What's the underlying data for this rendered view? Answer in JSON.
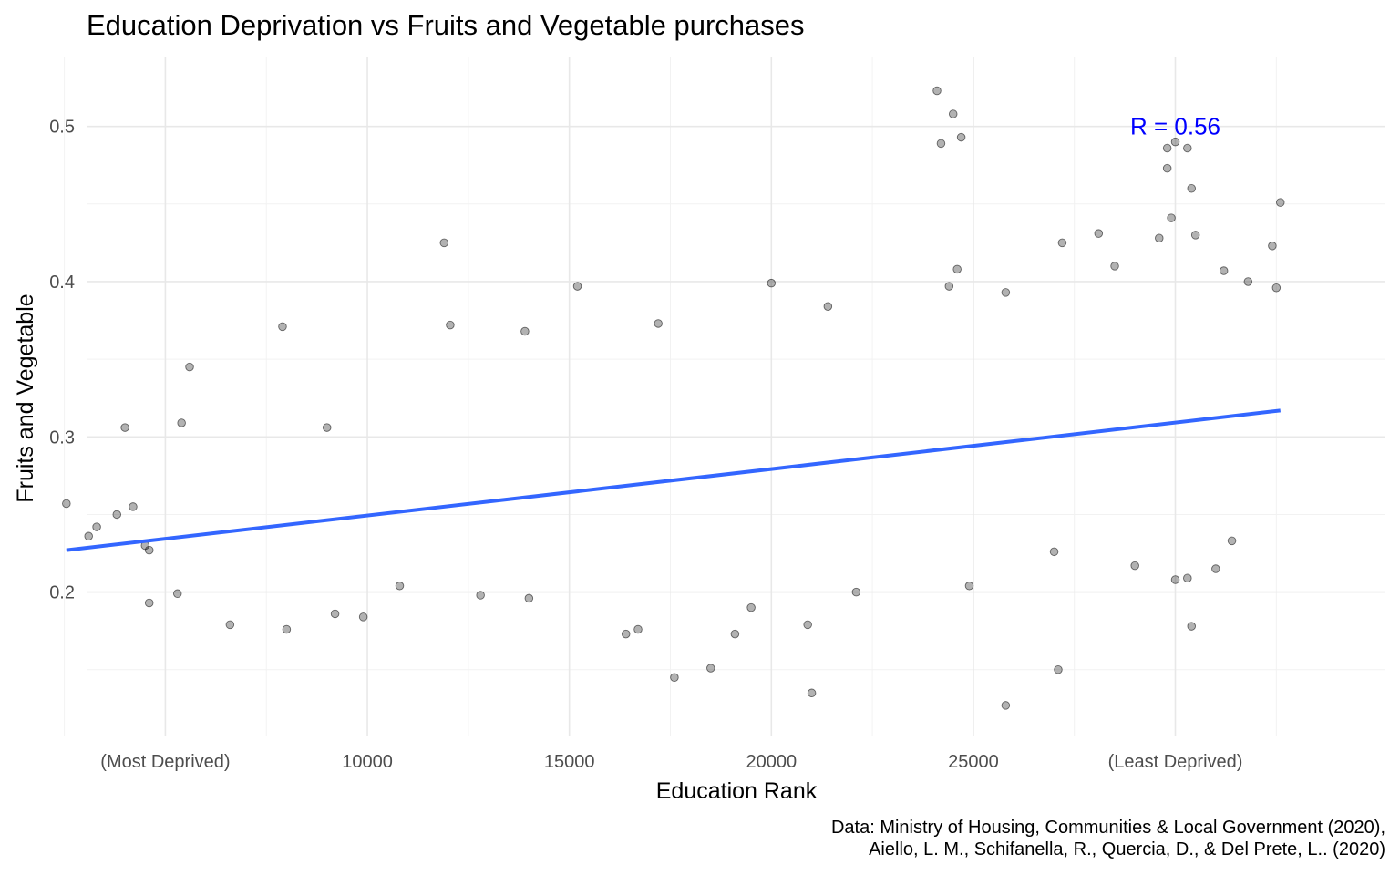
{
  "chart_data": {
    "type": "scatter",
    "title": "Education Deprivation vs Fruits and Vegetable purchases",
    "xlabel": "Education Rank",
    "ylabel": "Fruits and Vegetable",
    "xlim": [
      3050,
      35200
    ],
    "ylim": [
      0.107,
      0.545
    ],
    "x_ticks": [
      {
        "value": 5000,
        "label": "(Most Deprived)"
      },
      {
        "value": 10000,
        "label": "10000"
      },
      {
        "value": 15000,
        "label": "15000"
      },
      {
        "value": 20000,
        "label": "20000"
      },
      {
        "value": 25000,
        "label": "25000"
      },
      {
        "value": 30000,
        "label": "(Least Deprived)"
      }
    ],
    "y_ticks": [
      {
        "value": 0.2,
        "label": "0.2"
      },
      {
        "value": 0.3,
        "label": "0.3"
      },
      {
        "value": 0.4,
        "label": "0.4"
      },
      {
        "value": 0.5,
        "label": "0.5"
      }
    ],
    "minor_x": [
      2500,
      7500,
      12500,
      17500,
      22500,
      27500,
      32500
    ],
    "minor_y": [
      0.15,
      0.25,
      0.35,
      0.45
    ],
    "trend": {
      "x": [
        2550,
        32600
      ],
      "y": [
        0.227,
        0.317
      ],
      "color": "#3366FF"
    },
    "annotation": {
      "text": "R = 0.56",
      "x": 30000,
      "y": 0.5,
      "color": "#0000FF"
    },
    "point_color": "#000000",
    "point_alpha": 0.3,
    "points": [
      [
        2550,
        0.257
      ],
      [
        3100,
        0.236
      ],
      [
        3300,
        0.242
      ],
      [
        3800,
        0.25
      ],
      [
        4000,
        0.306
      ],
      [
        4200,
        0.255
      ],
      [
        4500,
        0.23
      ],
      [
        4600,
        0.227
      ],
      [
        5600,
        0.345
      ],
      [
        5400,
        0.309
      ],
      [
        7900,
        0.371
      ],
      [
        8000,
        0.176
      ],
      [
        4600,
        0.193
      ],
      [
        5300,
        0.199
      ],
      [
        6600,
        0.179
      ],
      [
        9200,
        0.186
      ],
      [
        9900,
        0.184
      ],
      [
        11900,
        0.425
      ],
      [
        12050,
        0.372
      ],
      [
        13900,
        0.368
      ],
      [
        15200,
        0.397
      ],
      [
        17600,
        0.145
      ],
      [
        18500,
        0.151
      ],
      [
        19100,
        0.173
      ],
      [
        17200,
        0.373
      ],
      [
        20000,
        0.399
      ],
      [
        21000,
        0.135
      ],
      [
        20900,
        0.179
      ],
      [
        21400,
        0.384
      ],
      [
        22100,
        0.2
      ],
      [
        25800,
        0.127
      ],
      [
        27100,
        0.15
      ],
      [
        27200,
        0.425
      ],
      [
        28100,
        0.431
      ],
      [
        24100,
        0.523
      ],
      [
        24200,
        0.489
      ],
      [
        24500,
        0.508
      ],
      [
        24700,
        0.493
      ],
      [
        29800,
        0.486
      ],
      [
        30000,
        0.49
      ],
      [
        29800,
        0.473
      ],
      [
        30300,
        0.486
      ],
      [
        30400,
        0.46
      ],
      [
        29900,
        0.441
      ],
      [
        30500,
        0.43
      ],
      [
        29600,
        0.428
      ],
      [
        32600,
        0.451
      ],
      [
        32400,
        0.423
      ],
      [
        30400,
        0.178
      ],
      [
        24600,
        0.408
      ],
      [
        24400,
        0.397
      ],
      [
        24900,
        0.204
      ],
      [
        27000,
        0.226
      ],
      [
        28500,
        0.41
      ],
      [
        25800,
        0.393
      ],
      [
        31200,
        0.407
      ],
      [
        31800,
        0.4
      ],
      [
        32500,
        0.396
      ],
      [
        29000,
        0.217
      ],
      [
        30000,
        0.208
      ],
      [
        31000,
        0.215
      ],
      [
        31400,
        0.233
      ],
      [
        30300,
        0.209
      ],
      [
        14000,
        0.196
      ],
      [
        16400,
        0.173
      ],
      [
        16700,
        0.176
      ],
      [
        12800,
        0.198
      ],
      [
        10800,
        0.204
      ],
      [
        19500,
        0.19
      ],
      [
        9000,
        0.306
      ]
    ]
  },
  "caption": {
    "line1": "Data: Ministry of Housing, Communities & Local Government (2020),",
    "line2": "Aiello, L. M., Schifanella, R., Quercia, D., & Del Prete, L.. (2020)"
  }
}
